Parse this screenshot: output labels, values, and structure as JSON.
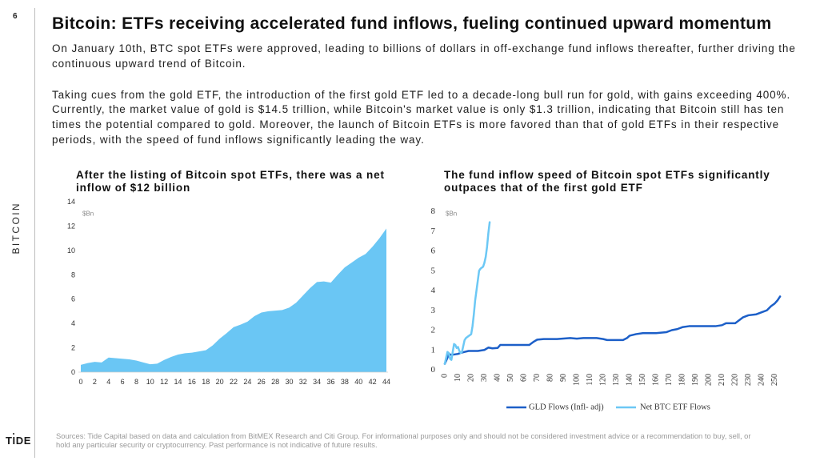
{
  "page": {
    "number": "6",
    "section": "BITCOIN",
    "logo": "TIDE"
  },
  "title": "Bitcoin: ETFs receiving accelerated fund inflows, fueling continued upward momentum",
  "intro": {
    "paragraph_1": [
      "On January 10th, BTC spot ETFs were approved, leading to billions of dollars in off-exchange fund inflows thereafter, further driving the",
      "continuous upward trend of Bitcoin."
    ],
    "paragraph_2": [
      "Taking cues from the gold ETF, the introduction of the first gold ETF led to a decade-long bull run for gold, with gains exceeding 400%.",
      "Currently, the market value of gold is $14.5 trillion, while Bitcoin's market value is only $1.3 trillion, indicating that Bitcoin still has ten",
      "times the potential compared to gold. Moreover, the launch of Bitcoin ETFs is more favored than that of gold ETFs in their respective",
      "periods, with the speed of fund inflows significantly leading the way."
    ]
  },
  "footer": {
    "source_lines": [
      "Sources: Tide Capital based on data and calculation from BitMEX Research and Citi Group. For informational purposes only and should not be considered investment advice or a recommendation to buy, sell, or",
      "hold any particular security or cryptocurrency. Past performance is not indicative of future results."
    ]
  },
  "chart_data": [
    {
      "type": "area",
      "title_lines": [
        "After the listing of Bitcoin spot ETFs, there was a net",
        "inflow of $12 billion"
      ],
      "unit_label": "$Bn",
      "xlabel": "",
      "ylabel": "$Bn",
      "xlim": [
        0,
        44
      ],
      "ylim": [
        0,
        14
      ],
      "xticks": [
        0,
        2,
        4,
        6,
        8,
        10,
        12,
        14,
        16,
        18,
        20,
        22,
        24,
        26,
        28,
        30,
        32,
        34,
        36,
        38,
        40,
        42,
        44
      ],
      "yticks": [
        0,
        2,
        4,
        6,
        8,
        10,
        12,
        14
      ],
      "color": "#6ac6f4",
      "x": [
        0,
        1,
        2,
        3,
        4,
        5,
        6,
        7,
        8,
        9,
        10,
        11,
        12,
        13,
        14,
        15,
        16,
        17,
        18,
        19,
        20,
        21,
        22,
        23,
        24,
        25,
        26,
        27,
        28,
        29,
        30,
        31,
        32,
        33,
        34,
        35,
        36,
        37,
        38,
        39,
        40,
        41,
        42,
        43,
        44
      ],
      "values": [
        0.6,
        0.75,
        0.85,
        0.8,
        1.2,
        1.15,
        1.1,
        1.05,
        0.95,
        0.8,
        0.65,
        0.7,
        1.0,
        1.25,
        1.45,
        1.55,
        1.6,
        1.7,
        1.8,
        2.2,
        2.75,
        3.2,
        3.7,
        3.9,
        4.15,
        4.6,
        4.9,
        5.0,
        5.05,
        5.1,
        5.3,
        5.7,
        6.3,
        6.9,
        7.4,
        7.45,
        7.35,
        8.0,
        8.6,
        9.0,
        9.4,
        9.7,
        10.3,
        11.0,
        11.8
      ]
    },
    {
      "type": "line",
      "title_lines": [
        "The fund inflow speed of Bitcoin spot ETFs significantly",
        "outpaces that of the first gold ETF"
      ],
      "unit_label": "$Bn",
      "xlabel": "",
      "ylabel": "$Bn",
      "xlim": [
        0,
        260
      ],
      "ylim": [
        0,
        8
      ],
      "xticks": [
        0,
        10,
        20,
        30,
        40,
        50,
        60,
        70,
        80,
        90,
        100,
        110,
        120,
        130,
        140,
        150,
        160,
        170,
        180,
        190,
        200,
        210,
        220,
        230,
        240,
        250
      ],
      "yticks": [
        0,
        1,
        2,
        3,
        4,
        5,
        6,
        7,
        8
      ],
      "legend_position": "bottom",
      "series": [
        {
          "name": "GLD Flows (Infl- adj)",
          "color": "#1c5fc8",
          "x": [
            0,
            2,
            3,
            5,
            10,
            12,
            15,
            18,
            25,
            30,
            33,
            36,
            40,
            42,
            50,
            60,
            64,
            67,
            70,
            75,
            85,
            95,
            100,
            105,
            115,
            120,
            123,
            135,
            138,
            140,
            145,
            150,
            160,
            168,
            172,
            176,
            180,
            185,
            195,
            205,
            210,
            213,
            220,
            223,
            226,
            230,
            236,
            240,
            244,
            247,
            250,
            252,
            254
          ],
          "y": [
            0.3,
            0.6,
            0.8,
            0.75,
            0.8,
            0.85,
            0.9,
            0.95,
            0.95,
            1.0,
            1.12,
            1.08,
            1.1,
            1.25,
            1.25,
            1.25,
            1.25,
            1.4,
            1.52,
            1.55,
            1.55,
            1.6,
            1.57,
            1.6,
            1.6,
            1.55,
            1.5,
            1.5,
            1.6,
            1.72,
            1.8,
            1.85,
            1.85,
            1.9,
            2.0,
            2.05,
            2.15,
            2.2,
            2.2,
            2.2,
            2.25,
            2.35,
            2.35,
            2.5,
            2.65,
            2.75,
            2.8,
            2.9,
            3.0,
            3.2,
            3.35,
            3.5,
            3.7
          ]
        },
        {
          "name": "Net BTC ETF Flows",
          "color": "#6cc8f5",
          "x": [
            0,
            1,
            2,
            3,
            4,
            5,
            6,
            7,
            8,
            9,
            10,
            11,
            12,
            13,
            14,
            15,
            16,
            17,
            18,
            19,
            20,
            21,
            22,
            23,
            24,
            25,
            26,
            27,
            28,
            29,
            30,
            31,
            32,
            33,
            34
          ],
          "y": [
            0.3,
            0.6,
            0.9,
            0.85,
            0.55,
            0.5,
            0.9,
            1.3,
            1.25,
            1.1,
            1.15,
            0.95,
            0.85,
            0.9,
            1.2,
            1.5,
            1.6,
            1.65,
            1.7,
            1.75,
            1.8,
            2.2,
            2.8,
            3.5,
            4.0,
            4.5,
            5.0,
            5.1,
            5.15,
            5.2,
            5.4,
            5.7,
            6.2,
            6.9,
            7.45
          ]
        }
      ]
    }
  ]
}
